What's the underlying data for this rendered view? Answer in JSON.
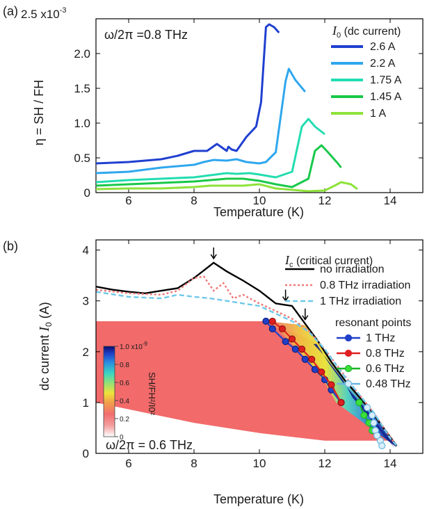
{
  "chart_data": [
    {
      "type": "line",
      "panel_label": "(a)",
      "annotation": "ω/2π =0.8 THz",
      "xlabel": "Temperature (K)",
      "ylabel": "η = SH / FH",
      "y_scale_label": "2.5 x10",
      "y_scale_exponent": "-3",
      "xlim": [
        5,
        15
      ],
      "ylim": [
        0,
        2.5
      ],
      "xticks": [
        6,
        8,
        10,
        12,
        14
      ],
      "yticks": [
        0,
        0.5,
        1.0,
        1.5,
        2.0
      ],
      "ytick_labels": [
        "0",
        "0.5",
        "1.0",
        "1.5",
        "2.0"
      ],
      "legend_title": "I0 (dc current)",
      "legend_title_symbol": "I",
      "legend_title_sub": "0",
      "legend_title_rest": " (dc current)",
      "legend_position": "top-right",
      "series": [
        {
          "name": "2.6 A",
          "color": "#1f3fd0",
          "x": [
            5,
            6,
            7,
            7.5,
            8,
            8.4,
            8.7,
            9.0,
            9.05,
            9.15,
            9.3,
            9.6,
            9.9,
            10.05,
            10.2,
            10.3,
            10.45,
            10.6
          ],
          "y": [
            0.42,
            0.44,
            0.48,
            0.53,
            0.6,
            0.6,
            0.7,
            0.6,
            0.66,
            0.62,
            0.6,
            0.8,
            0.95,
            1.3,
            2.38,
            2.42,
            2.38,
            2.3
          ]
        },
        {
          "name": "2.2 A",
          "color": "#2fa7ee",
          "x": [
            5,
            6,
            6.5,
            7,
            7.5,
            8,
            8.3,
            8.6,
            9,
            9.3,
            9.6,
            10,
            10.2,
            10.5,
            10.8,
            10.9,
            11.1,
            11.4
          ],
          "y": [
            0.28,
            0.3,
            0.33,
            0.36,
            0.38,
            0.4,
            0.44,
            0.47,
            0.46,
            0.48,
            0.44,
            0.42,
            0.44,
            0.58,
            1.6,
            1.78,
            1.62,
            1.45
          ]
        },
        {
          "name": "1.75 A",
          "color": "#22ddb0",
          "x": [
            5,
            6,
            7,
            8,
            8.5,
            9,
            9.3,
            9.7,
            10,
            10.5,
            11.0,
            11.3,
            11.5,
            11.7,
            12.0
          ],
          "y": [
            0.15,
            0.18,
            0.2,
            0.22,
            0.25,
            0.28,
            0.27,
            0.28,
            0.26,
            0.22,
            0.3,
            0.95,
            1.06,
            0.95,
            0.84
          ]
        },
        {
          "name": "1.45 A",
          "color": "#18c84a",
          "x": [
            5,
            6,
            7,
            8,
            8.5,
            9,
            9.5,
            10,
            10.5,
            11,
            11.5,
            11.7,
            11.9,
            12.1,
            12.4,
            12.5
          ],
          "y": [
            0.1,
            0.12,
            0.14,
            0.16,
            0.18,
            0.2,
            0.2,
            0.17,
            0.12,
            0.08,
            0.2,
            0.6,
            0.68,
            0.58,
            0.42,
            0.36
          ]
        },
        {
          "name": "1 A",
          "color": "#8ee23a",
          "x": [
            5,
            6,
            7,
            8,
            8.5,
            9,
            9.5,
            10,
            10.5,
            11,
            11.5,
            12,
            12.3,
            12.5,
            12.8,
            13.0
          ],
          "y": [
            0.05,
            0.06,
            0.06,
            0.08,
            0.1,
            0.1,
            0.1,
            0.12,
            0.06,
            0.04,
            0.02,
            0.03,
            0.1,
            0.15,
            0.12,
            0.05
          ]
        }
      ]
    },
    {
      "type": "heatmap",
      "panel_label": "(b)",
      "annotation": "ω/2π = 0.6 THz",
      "xlabel": "Temperature (K)",
      "ylabel": "dc current  I0 (A)",
      "ylabel_text": "dc current  ",
      "ylabel_symbol": "I",
      "ylabel_sub": "0",
      "ylabel_unit": " (A)",
      "xlim": [
        5,
        15
      ],
      "ylim": [
        0,
        4.2
      ],
      "xticks": [
        6,
        8,
        10,
        12,
        14
      ],
      "yticks": [
        0,
        1,
        2,
        3,
        4
      ],
      "colorbar": {
        "label": "SH/FH²/I0²",
        "ticks": [
          "0",
          "0.2",
          "0.4",
          "0.6",
          "0.8",
          "1.0 x10"
        ],
        "exponent": "-9",
        "range": [
          0,
          1e-09
        ]
      },
      "critical_current_legend_title": "Ic (critical current)",
      "critical_current_symbol": "I",
      "critical_current_sub": "c",
      "critical_current_rest": " (critical current)",
      "critical_current": [
        {
          "name": "no irradiation",
          "color": "#000000",
          "dash": "solid",
          "x": [
            5,
            5.5,
            6,
            6.5,
            7,
            7.5,
            8,
            8.3,
            8.6,
            9,
            9.5,
            10,
            10.5,
            10.8,
            11,
            11.4,
            11.8,
            12.2,
            12.6,
            13,
            13.4,
            13.8,
            14.2
          ],
          "y": [
            3.28,
            3.22,
            3.18,
            3.15,
            3.2,
            3.25,
            3.45,
            3.6,
            3.75,
            3.58,
            3.4,
            3.2,
            2.95,
            2.92,
            2.9,
            2.55,
            2.2,
            1.8,
            1.45,
            1.15,
            0.85,
            0.5,
            0.15
          ]
        },
        {
          "name": "0.8 THz irradiation",
          "color": "#f07878",
          "dash": "dot",
          "x": [
            5,
            6,
            7,
            7.5,
            8,
            8.3,
            8.6,
            8.9,
            9.2,
            9.5,
            10,
            10.5,
            11,
            11.5,
            12,
            12.5,
            13,
            13.5,
            14,
            14.2
          ],
          "y": [
            3.22,
            3.15,
            3.12,
            3.2,
            3.45,
            3.48,
            3.2,
            3.35,
            3.05,
            3.12,
            2.95,
            2.8,
            2.65,
            2.42,
            2.05,
            1.62,
            1.2,
            0.8,
            0.32,
            0.15
          ]
        },
        {
          "name": "1 THz irradiation",
          "color": "#6ec8ea",
          "dash": "dash",
          "x": [
            5,
            6,
            7,
            7.5,
            8,
            8.5,
            9,
            9.5,
            10,
            10.5,
            11,
            11.5,
            12,
            12.5,
            13,
            13.5,
            14,
            14.2
          ],
          "y": [
            3.18,
            3.08,
            3.05,
            3.12,
            3.08,
            3.05,
            3.0,
            2.95,
            2.9,
            2.75,
            2.6,
            2.4,
            2.05,
            1.6,
            1.2,
            0.8,
            0.3,
            0.15
          ]
        }
      ],
      "arrows_x": [
        8.6,
        10.8,
        11.4
      ],
      "resonant_legend_title": "resonant points",
      "resonant_points": [
        {
          "name": "1 THz",
          "color": "#2040c8",
          "fill": "#2040c8",
          "x": [
            10.2,
            10.4,
            10.8,
            11.1,
            11.4,
            11.7,
            12.0,
            12.2,
            12.5
          ],
          "y": [
            2.6,
            2.45,
            2.2,
            2.05,
            1.85,
            1.65,
            1.45,
            1.25,
            1.0
          ]
        },
        {
          "name": "0.8 THz",
          "color": "#e02020",
          "fill": "#e02020",
          "x": [
            10.4,
            10.7,
            11.0,
            11.3,
            11.6,
            11.9,
            12.2,
            12.5
          ],
          "y": [
            2.6,
            2.45,
            2.25,
            2.05,
            1.85,
            1.6,
            1.35,
            1.0
          ]
        },
        {
          "name": "0.6 THz",
          "color": "#18b428",
          "fill": "#3ce03c",
          "x": [
            13.05,
            13.2,
            13.35,
            13.45
          ],
          "y": [
            1.0,
            0.75,
            0.6,
            0.45
          ]
        },
        {
          "name": "0.48 THz",
          "color": "#6ab6e0",
          "fill": "#d8eefa",
          "x": [
            13.3,
            13.45,
            13.5,
            13.55,
            13.6,
            13.7,
            13.75
          ],
          "y": [
            0.9,
            0.75,
            0.6,
            0.45,
            0.35,
            0.25,
            0.15
          ]
        }
      ]
    }
  ]
}
